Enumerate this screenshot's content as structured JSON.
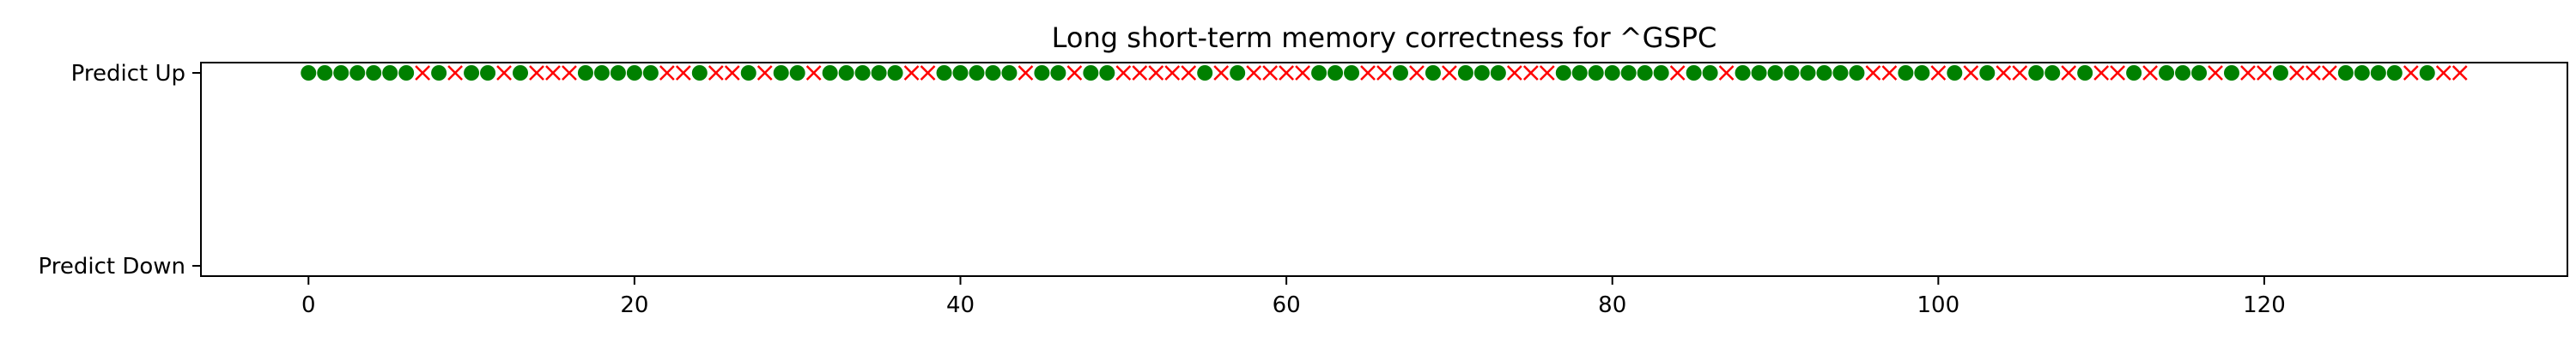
{
  "chart_data": {
    "type": "scatter",
    "title": "Long short-term memory correctness for ^GSPC",
    "xlabel": "",
    "ylabel": "",
    "xlim": [
      -6.6,
      138.6
    ],
    "x_ticks": [
      0,
      20,
      40,
      60,
      80,
      100,
      120
    ],
    "y_categories": [
      "Predict Up",
      "Predict Down"
    ],
    "grid": false,
    "legend": "none",
    "colors": {
      "correct": "#008000",
      "incorrect": "#ff0000"
    },
    "markers": {
      "correct": "circle",
      "incorrect": "x"
    },
    "series": [
      {
        "values": [
          {
            "x": 0,
            "y": "Predict Up",
            "correct": true
          },
          {
            "x": 1,
            "y": "Predict Up",
            "correct": true
          },
          {
            "x": 2,
            "y": "Predict Up",
            "correct": true
          },
          {
            "x": 3,
            "y": "Predict Up",
            "correct": true
          },
          {
            "x": 4,
            "y": "Predict Up",
            "correct": true
          },
          {
            "x": 5,
            "y": "Predict Up",
            "correct": true
          },
          {
            "x": 6,
            "y": "Predict Up",
            "correct": true
          },
          {
            "x": 7,
            "y": "Predict Up",
            "correct": false
          },
          {
            "x": 8,
            "y": "Predict Up",
            "correct": true
          },
          {
            "x": 9,
            "y": "Predict Up",
            "correct": false
          },
          {
            "x": 10,
            "y": "Predict Up",
            "correct": true
          },
          {
            "x": 11,
            "y": "Predict Up",
            "correct": true
          },
          {
            "x": 12,
            "y": "Predict Up",
            "correct": false
          },
          {
            "x": 13,
            "y": "Predict Up",
            "correct": true
          },
          {
            "x": 14,
            "y": "Predict Up",
            "correct": false
          },
          {
            "x": 15,
            "y": "Predict Up",
            "correct": false
          },
          {
            "x": 16,
            "y": "Predict Up",
            "correct": false
          },
          {
            "x": 17,
            "y": "Predict Up",
            "correct": true
          },
          {
            "x": 18,
            "y": "Predict Up",
            "correct": true
          },
          {
            "x": 19,
            "y": "Predict Up",
            "correct": true
          },
          {
            "x": 20,
            "y": "Predict Up",
            "correct": true
          },
          {
            "x": 21,
            "y": "Predict Up",
            "correct": true
          },
          {
            "x": 22,
            "y": "Predict Up",
            "correct": false
          },
          {
            "x": 23,
            "y": "Predict Up",
            "correct": false
          },
          {
            "x": 24,
            "y": "Predict Up",
            "correct": true
          },
          {
            "x": 25,
            "y": "Predict Up",
            "correct": false
          },
          {
            "x": 26,
            "y": "Predict Up",
            "correct": false
          },
          {
            "x": 27,
            "y": "Predict Up",
            "correct": true
          },
          {
            "x": 28,
            "y": "Predict Up",
            "correct": false
          },
          {
            "x": 29,
            "y": "Predict Up",
            "correct": true
          },
          {
            "x": 30,
            "y": "Predict Up",
            "correct": true
          },
          {
            "x": 31,
            "y": "Predict Up",
            "correct": false
          },
          {
            "x": 32,
            "y": "Predict Up",
            "correct": true
          },
          {
            "x": 33,
            "y": "Predict Up",
            "correct": true
          },
          {
            "x": 34,
            "y": "Predict Up",
            "correct": true
          },
          {
            "x": 35,
            "y": "Predict Up",
            "correct": true
          },
          {
            "x": 36,
            "y": "Predict Up",
            "correct": true
          },
          {
            "x": 37,
            "y": "Predict Up",
            "correct": false
          },
          {
            "x": 38,
            "y": "Predict Up",
            "correct": false
          },
          {
            "x": 39,
            "y": "Predict Up",
            "correct": true
          },
          {
            "x": 40,
            "y": "Predict Up",
            "correct": true
          },
          {
            "x": 41,
            "y": "Predict Up",
            "correct": true
          },
          {
            "x": 42,
            "y": "Predict Up",
            "correct": true
          },
          {
            "x": 43,
            "y": "Predict Up",
            "correct": true
          },
          {
            "x": 44,
            "y": "Predict Up",
            "correct": false
          },
          {
            "x": 45,
            "y": "Predict Up",
            "correct": true
          },
          {
            "x": 46,
            "y": "Predict Up",
            "correct": true
          },
          {
            "x": 47,
            "y": "Predict Up",
            "correct": false
          },
          {
            "x": 48,
            "y": "Predict Up",
            "correct": true
          },
          {
            "x": 49,
            "y": "Predict Up",
            "correct": true
          },
          {
            "x": 50,
            "y": "Predict Up",
            "correct": false
          },
          {
            "x": 51,
            "y": "Predict Up",
            "correct": false
          },
          {
            "x": 52,
            "y": "Predict Up",
            "correct": false
          },
          {
            "x": 53,
            "y": "Predict Up",
            "correct": false
          },
          {
            "x": 54,
            "y": "Predict Up",
            "correct": false
          },
          {
            "x": 55,
            "y": "Predict Up",
            "correct": true
          },
          {
            "x": 56,
            "y": "Predict Up",
            "correct": false
          },
          {
            "x": 57,
            "y": "Predict Up",
            "correct": true
          },
          {
            "x": 58,
            "y": "Predict Up",
            "correct": false
          },
          {
            "x": 59,
            "y": "Predict Up",
            "correct": false
          },
          {
            "x": 60,
            "y": "Predict Up",
            "correct": false
          },
          {
            "x": 61,
            "y": "Predict Up",
            "correct": false
          },
          {
            "x": 62,
            "y": "Predict Up",
            "correct": true
          },
          {
            "x": 63,
            "y": "Predict Up",
            "correct": true
          },
          {
            "x": 64,
            "y": "Predict Up",
            "correct": true
          },
          {
            "x": 65,
            "y": "Predict Up",
            "correct": false
          },
          {
            "x": 66,
            "y": "Predict Up",
            "correct": false
          },
          {
            "x": 67,
            "y": "Predict Up",
            "correct": true
          },
          {
            "x": 68,
            "y": "Predict Up",
            "correct": false
          },
          {
            "x": 69,
            "y": "Predict Up",
            "correct": true
          },
          {
            "x": 70,
            "y": "Predict Up",
            "correct": false
          },
          {
            "x": 71,
            "y": "Predict Up",
            "correct": true
          },
          {
            "x": 72,
            "y": "Predict Up",
            "correct": true
          },
          {
            "x": 73,
            "y": "Predict Up",
            "correct": true
          },
          {
            "x": 74,
            "y": "Predict Up",
            "correct": false
          },
          {
            "x": 75,
            "y": "Predict Up",
            "correct": false
          },
          {
            "x": 76,
            "y": "Predict Up",
            "correct": false
          },
          {
            "x": 77,
            "y": "Predict Up",
            "correct": true
          },
          {
            "x": 78,
            "y": "Predict Up",
            "correct": true
          },
          {
            "x": 79,
            "y": "Predict Up",
            "correct": true
          },
          {
            "x": 80,
            "y": "Predict Up",
            "correct": true
          },
          {
            "x": 81,
            "y": "Predict Up",
            "correct": true
          },
          {
            "x": 82,
            "y": "Predict Up",
            "correct": true
          },
          {
            "x": 83,
            "y": "Predict Up",
            "correct": true
          },
          {
            "x": 84,
            "y": "Predict Up",
            "correct": false
          },
          {
            "x": 85,
            "y": "Predict Up",
            "correct": true
          },
          {
            "x": 86,
            "y": "Predict Up",
            "correct": true
          },
          {
            "x": 87,
            "y": "Predict Up",
            "correct": false
          },
          {
            "x": 88,
            "y": "Predict Up",
            "correct": true
          },
          {
            "x": 89,
            "y": "Predict Up",
            "correct": true
          },
          {
            "x": 90,
            "y": "Predict Up",
            "correct": true
          },
          {
            "x": 91,
            "y": "Predict Up",
            "correct": true
          },
          {
            "x": 92,
            "y": "Predict Up",
            "correct": true
          },
          {
            "x": 93,
            "y": "Predict Up",
            "correct": true
          },
          {
            "x": 94,
            "y": "Predict Up",
            "correct": true
          },
          {
            "x": 95,
            "y": "Predict Up",
            "correct": true
          },
          {
            "x": 96,
            "y": "Predict Up",
            "correct": false
          },
          {
            "x": 97,
            "y": "Predict Up",
            "correct": false
          },
          {
            "x": 98,
            "y": "Predict Up",
            "correct": true
          },
          {
            "x": 99,
            "y": "Predict Up",
            "correct": true
          },
          {
            "x": 100,
            "y": "Predict Up",
            "correct": false
          },
          {
            "x": 101,
            "y": "Predict Up",
            "correct": true
          },
          {
            "x": 102,
            "y": "Predict Up",
            "correct": false
          },
          {
            "x": 103,
            "y": "Predict Up",
            "correct": true
          },
          {
            "x": 104,
            "y": "Predict Up",
            "correct": false
          },
          {
            "x": 105,
            "y": "Predict Up",
            "correct": false
          },
          {
            "x": 106,
            "y": "Predict Up",
            "correct": true
          },
          {
            "x": 107,
            "y": "Predict Up",
            "correct": true
          },
          {
            "x": 108,
            "y": "Predict Up",
            "correct": false
          },
          {
            "x": 109,
            "y": "Predict Up",
            "correct": true
          },
          {
            "x": 110,
            "y": "Predict Up",
            "correct": false
          },
          {
            "x": 111,
            "y": "Predict Up",
            "correct": false
          },
          {
            "x": 112,
            "y": "Predict Up",
            "correct": true
          },
          {
            "x": 113,
            "y": "Predict Up",
            "correct": false
          },
          {
            "x": 114,
            "y": "Predict Up",
            "correct": true
          },
          {
            "x": 115,
            "y": "Predict Up",
            "correct": true
          },
          {
            "x": 116,
            "y": "Predict Up",
            "correct": true
          },
          {
            "x": 117,
            "y": "Predict Up",
            "correct": false
          },
          {
            "x": 118,
            "y": "Predict Up",
            "correct": true
          },
          {
            "x": 119,
            "y": "Predict Up",
            "correct": false
          },
          {
            "x": 120,
            "y": "Predict Up",
            "correct": false
          },
          {
            "x": 121,
            "y": "Predict Up",
            "correct": true
          },
          {
            "x": 122,
            "y": "Predict Up",
            "correct": false
          },
          {
            "x": 123,
            "y": "Predict Up",
            "correct": false
          },
          {
            "x": 124,
            "y": "Predict Up",
            "correct": false
          },
          {
            "x": 125,
            "y": "Predict Up",
            "correct": true
          },
          {
            "x": 126,
            "y": "Predict Up",
            "correct": true
          },
          {
            "x": 127,
            "y": "Predict Up",
            "correct": true
          },
          {
            "x": 128,
            "y": "Predict Up",
            "correct": true
          },
          {
            "x": 129,
            "y": "Predict Up",
            "correct": false
          },
          {
            "x": 130,
            "y": "Predict Up",
            "correct": true
          },
          {
            "x": 131,
            "y": "Predict Up",
            "correct": false
          },
          {
            "x": 132,
            "y": "Predict Up",
            "correct": false
          }
        ]
      }
    ]
  }
}
